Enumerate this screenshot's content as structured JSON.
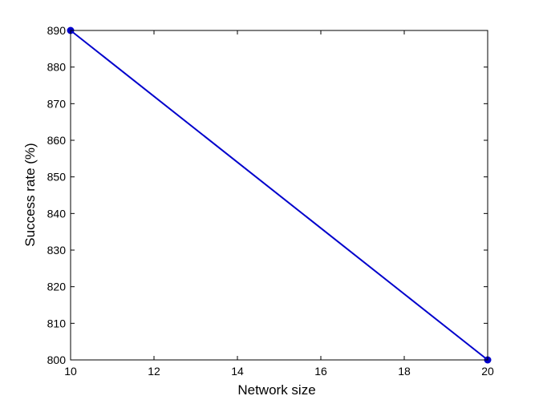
{
  "chart_data": {
    "type": "line",
    "title": "",
    "xlabel": "Network size",
    "ylabel": "Success rate (%)",
    "xlim": [
      10,
      20
    ],
    "ylim": [
      800,
      890
    ],
    "x_ticks": [
      10,
      12,
      14,
      16,
      18,
      20
    ],
    "y_ticks": [
      800,
      810,
      820,
      830,
      840,
      850,
      860,
      870,
      880,
      890
    ],
    "grid": false,
    "legend": "none",
    "series": [
      {
        "color": "#0000cc",
        "marker": "circle",
        "points": [
          {
            "x": 10,
            "y": 890
          },
          {
            "x": 20,
            "y": 800
          }
        ]
      }
    ]
  }
}
